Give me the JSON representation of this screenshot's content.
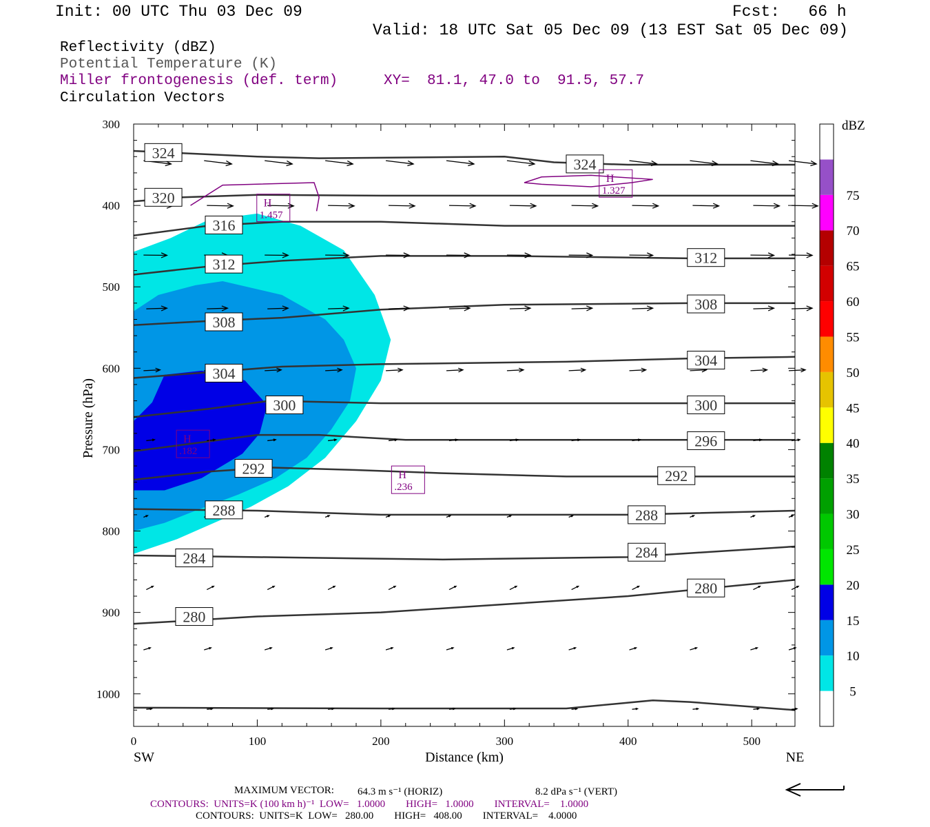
{
  "header": {
    "init": "Init: 00 UTC Thu 03 Dec 09",
    "fcst": "Fcst:   66 h",
    "valid": "Valid: 18 UTC Sat 05 Dec 09 (13 EST Sat 05 Dec 09)"
  },
  "legend_lines": {
    "reflectivity": "Reflectivity (dBZ)",
    "theta": "Potential Temperature (K)",
    "frontogenesis": "Miller frontogenesis (def. term)",
    "xy": "XY=  81.1, 47.0 to  91.5, 57.7",
    "vectors": "Circulation Vectors"
  },
  "footer": {
    "max_vector_label": "MAXIMUM VECTOR:",
    "max_vector_horiz": "64.3 m s⁻¹ (HORIZ)",
    "max_vector_vert": "8.2 dPa s⁻¹ (VERT)",
    "contours1": "CONTOURS:  UNITS=K (100 km h)⁻¹  LOW=   1.0000        HIGH=   1.0000        INTERVAL=    1.0000",
    "contours2": "CONTOURS:  UNITS=K  LOW=   280.00        HIGH=   408.00        INTERVAL=    4.0000"
  },
  "chart_data": {
    "type": "cross-section",
    "xlabel": "Distance (km)",
    "ylabel": "Pressure (hPa)",
    "xlim": [
      0,
      535
    ],
    "ylim": [
      1040,
      300
    ],
    "x_ticks": [
      0,
      100,
      200,
      300,
      400,
      500
    ],
    "y_ticks": [
      300,
      400,
      500,
      600,
      700,
      800,
      900,
      1000
    ],
    "x_end_labels": {
      "left": "SW",
      "right": "NE"
    },
    "colorbar": {
      "unit": "dBZ",
      "levels": [
        5,
        10,
        15,
        20,
        25,
        30,
        35,
        40,
        45,
        50,
        55,
        60,
        65,
        70,
        75
      ],
      "colors": [
        "#ffffff",
        "#00e6e6",
        "#0096e6",
        "#0000e6",
        "#00e600",
        "#00c800",
        "#00a000",
        "#008200",
        "#ffff00",
        "#e6c300",
        "#ff8c00",
        "#ff0000",
        "#d20000",
        "#b40000",
        "#ff00ff",
        "#9650c8",
        "#ffffff"
      ]
    },
    "reflectivity_regions": [
      {
        "dbz": 5,
        "color": "#00e6e6",
        "points": [
          [
            0,
            457
          ],
          [
            30,
            440
          ],
          [
            60,
            418
          ],
          [
            100,
            410
          ],
          [
            135,
            425
          ],
          [
            170,
            455
          ],
          [
            195,
            510
          ],
          [
            208,
            565
          ],
          [
            200,
            615
          ],
          [
            180,
            665
          ],
          [
            155,
            710
          ],
          [
            125,
            745
          ],
          [
            95,
            770
          ],
          [
            65,
            790
          ],
          [
            35,
            810
          ],
          [
            0,
            828
          ]
        ]
      },
      {
        "dbz": 10,
        "color": "#0096e6",
        "points": [
          [
            0,
            530
          ],
          [
            20,
            510
          ],
          [
            50,
            498
          ],
          [
            72,
            493
          ],
          [
            120,
            510
          ],
          [
            155,
            540
          ],
          [
            170,
            565
          ],
          [
            180,
            600
          ],
          [
            175,
            640
          ],
          [
            160,
            675
          ],
          [
            140,
            710
          ],
          [
            115,
            735
          ],
          [
            85,
            755
          ],
          [
            50,
            775
          ],
          [
            25,
            790
          ],
          [
            0,
            800
          ]
        ]
      },
      {
        "dbz": 15,
        "color": "#0000e6",
        "points": [
          [
            0,
            665
          ],
          [
            15,
            642
          ],
          [
            25,
            608
          ],
          [
            55,
            603
          ],
          [
            90,
            615
          ],
          [
            108,
            645
          ],
          [
            102,
            680
          ],
          [
            88,
            705
          ],
          [
            55,
            735
          ],
          [
            25,
            750
          ],
          [
            0,
            750
          ]
        ]
      }
    ],
    "theta_contours": [
      {
        "label": "324",
        "points": [
          [
            0,
            333
          ],
          [
            100,
            340
          ],
          [
            150,
            342
          ],
          [
            300,
            340
          ],
          [
            340,
            347
          ],
          [
            400,
            350
          ],
          [
            535,
            350
          ]
        ]
      },
      {
        "label": "320",
        "points": [
          [
            0,
            395
          ],
          [
            40,
            390
          ],
          [
            100,
            387
          ],
          [
            200,
            388
          ],
          [
            300,
            388
          ],
          [
            535,
            388
          ]
        ]
      },
      {
        "label": "316",
        "points": [
          [
            0,
            437
          ],
          [
            60,
            425
          ],
          [
            120,
            420
          ],
          [
            200,
            420
          ],
          [
            300,
            425
          ],
          [
            535,
            425
          ]
        ]
      },
      {
        "label": "312",
        "points": [
          [
            0,
            485
          ],
          [
            60,
            475
          ],
          [
            120,
            468
          ],
          [
            200,
            462
          ],
          [
            300,
            462
          ],
          [
            450,
            465
          ],
          [
            535,
            465
          ]
        ]
      },
      {
        "label": "308",
        "points": [
          [
            0,
            547
          ],
          [
            60,
            542
          ],
          [
            120,
            538
          ],
          [
            200,
            528
          ],
          [
            300,
            522
          ],
          [
            450,
            520
          ],
          [
            535,
            520
          ]
        ]
      },
      {
        "label": "304",
        "points": [
          [
            0,
            612
          ],
          [
            60,
            605
          ],
          [
            120,
            598
          ],
          [
            200,
            595
          ],
          [
            350,
            592
          ],
          [
            450,
            588
          ],
          [
            535,
            586
          ]
        ]
      },
      {
        "label": "300",
        "points": [
          [
            0,
            660
          ],
          [
            60,
            650
          ],
          [
            110,
            640
          ],
          [
            200,
            643
          ],
          [
            300,
            643
          ],
          [
            535,
            643
          ]
        ]
      },
      {
        "label": "296",
        "points": [
          [
            0,
            702
          ],
          [
            60,
            690
          ],
          [
            100,
            682
          ],
          [
            150,
            682
          ],
          [
            220,
            688
          ],
          [
            300,
            688
          ],
          [
            535,
            688
          ]
        ]
      },
      {
        "label": "292",
        "points": [
          [
            0,
            737
          ],
          [
            60,
            727
          ],
          [
            110,
            722
          ],
          [
            180,
            725
          ],
          [
            250,
            729
          ],
          [
            350,
            733
          ],
          [
            535,
            733
          ]
        ]
      },
      {
        "label": "288",
        "points": [
          [
            0,
            773
          ],
          [
            100,
            775
          ],
          [
            200,
            780
          ],
          [
            300,
            780
          ],
          [
            400,
            780
          ],
          [
            535,
            775
          ]
        ]
      },
      {
        "label": "284",
        "points": [
          [
            0,
            830
          ],
          [
            100,
            832
          ],
          [
            250,
            835
          ],
          [
            400,
            832
          ],
          [
            535,
            819
          ]
        ]
      },
      {
        "label": "280",
        "points": [
          [
            0,
            914
          ],
          [
            100,
            905
          ],
          [
            200,
            900
          ],
          [
            300,
            890
          ],
          [
            400,
            880
          ],
          [
            535,
            860
          ]
        ]
      },
      {
        "label": "",
        "points": [
          [
            0,
            1017
          ],
          [
            200,
            1018
          ],
          [
            350,
            1018
          ],
          [
            420,
            1008
          ],
          [
            450,
            1010
          ],
          [
            535,
            1020
          ]
        ]
      }
    ],
    "theta_labels": [
      {
        "value": "324",
        "x": 24,
        "p": 335
      },
      {
        "value": "324",
        "x": 365,
        "p": 349
      },
      {
        "value": "320",
        "x": 24,
        "p": 390
      },
      {
        "value": "316",
        "x": 73,
        "p": 424
      },
      {
        "value": "312",
        "x": 73,
        "p": 472
      },
      {
        "value": "312",
        "x": 463,
        "p": 464
      },
      {
        "value": "308",
        "x": 73,
        "p": 543
      },
      {
        "value": "308",
        "x": 463,
        "p": 521
      },
      {
        "value": "304",
        "x": 73,
        "p": 606
      },
      {
        "value": "304",
        "x": 463,
        "p": 590
      },
      {
        "value": "300",
        "x": 122,
        "p": 645
      },
      {
        "value": "300",
        "x": 463,
        "p": 645
      },
      {
        "value": "296",
        "x": 463,
        "p": 689
      },
      {
        "value": "292",
        "x": 97,
        "p": 723
      },
      {
        "value": "292",
        "x": 439,
        "p": 732
      },
      {
        "value": "288",
        "x": 73,
        "p": 774
      },
      {
        "value": "288",
        "x": 415,
        "p": 780
      },
      {
        "value": "284",
        "x": 49,
        "p": 833
      },
      {
        "value": "284",
        "x": 415,
        "p": 826
      },
      {
        "value": "280",
        "x": 463,
        "p": 870
      },
      {
        "value": "280",
        "x": 49,
        "p": 905
      }
    ],
    "frontogenesis_contours": [
      {
        "points": [
          [
            46,
            400
          ],
          [
            72,
            375
          ],
          [
            146,
            372
          ],
          [
            150,
            390
          ],
          [
            148,
            407
          ]
        ],
        "closed": false
      },
      {
        "points": [
          [
            316,
            372
          ],
          [
            330,
            365
          ],
          [
            370,
            363
          ],
          [
            420,
            368
          ],
          [
            403,
            372
          ],
          [
            370,
            377
          ],
          [
            330,
            374
          ]
        ],
        "closed": true
      }
    ],
    "frontogenesis_maxima": [
      {
        "label": "H",
        "value": "1.457",
        "x": 113,
        "p": 403
      },
      {
        "label": "H",
        "value": "1.327",
        "x": 390,
        "p": 373
      },
      {
        "label": "H",
        "value": ".182",
        "x": 48,
        "p": 693
      },
      {
        "label": "H",
        "value": ".236",
        "x": 222,
        "p": 737
      }
    ],
    "vector_rows": [
      {
        "p": 345,
        "len": 40,
        "slope": 0.12
      },
      {
        "p": 400,
        "len": 38,
        "slope": 0.02
      },
      {
        "p": 461,
        "len": 34,
        "slope": 0.01
      },
      {
        "p": 527,
        "len": 30,
        "slope": -0.03
      },
      {
        "p": 603,
        "len": 24,
        "slope": -0.05
      },
      {
        "p": 689,
        "len": 12,
        "slope": -0.12
      },
      {
        "p": 783,
        "len": 6,
        "slope": -0.4
      },
      {
        "p": 872,
        "len": 10,
        "slope": -0.5
      },
      {
        "p": 946,
        "len": 10,
        "slope": -0.3
      },
      {
        "p": 1019,
        "len": 8,
        "slope": -0.1
      }
    ],
    "vector_x": [
      8,
      57,
      106,
      155,
      204,
      253,
      302,
      352,
      401,
      450,
      499,
      530
    ]
  }
}
